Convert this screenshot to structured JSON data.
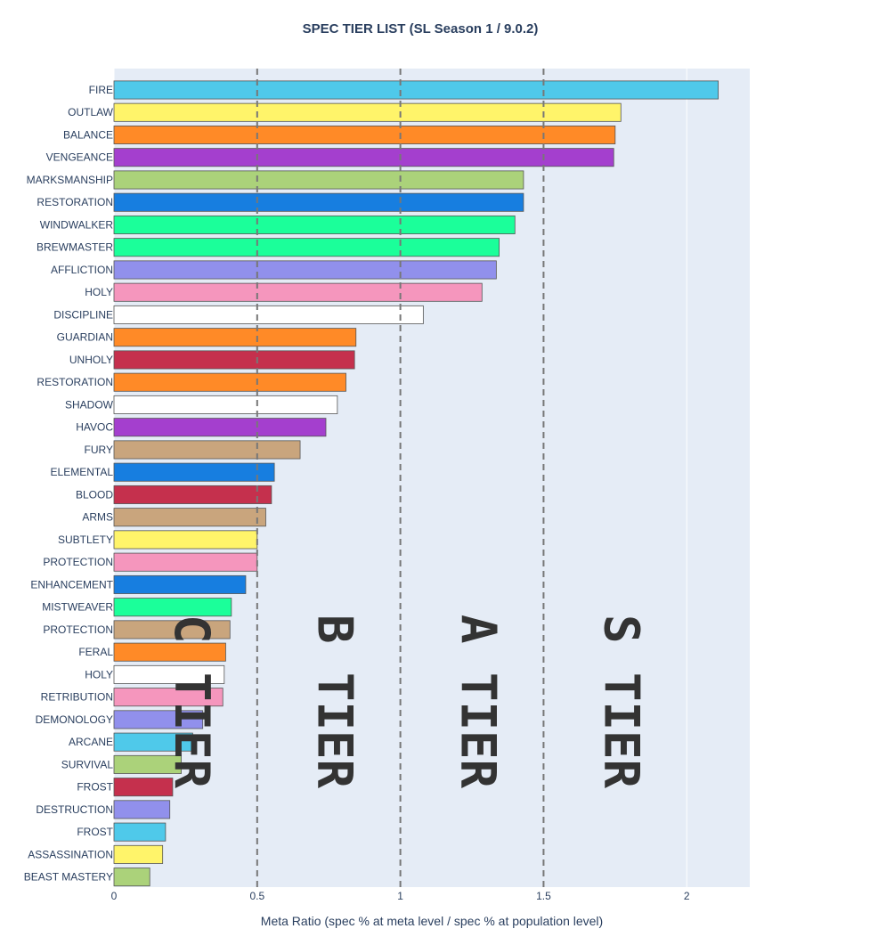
{
  "chart_data": {
    "type": "bar",
    "orientation": "horizontal",
    "title": "SPEC TIER LIST (SL Season 1 / 9.0.2)",
    "xlabel": "Meta Ratio (spec % at meta level / spec % at population level)",
    "ylabel": "",
    "xlim": [
      0,
      2.22
    ],
    "xticks": [
      0,
      0.5,
      1,
      1.5,
      2
    ],
    "xtick_labels": [
      "0",
      "0.5",
      "1",
      "1.5",
      "2"
    ],
    "grid": true,
    "plot_background": "#e5ecf6",
    "reference_lines": [
      {
        "x": 0.5,
        "style": "dashed",
        "color": "#777777"
      },
      {
        "x": 1.0,
        "style": "dashed",
        "color": "#777777"
      },
      {
        "x": 1.5,
        "style": "dashed",
        "color": "#777777"
      }
    ],
    "tier_labels": [
      {
        "text": "C TIER",
        "x": 0.27
      },
      {
        "text": "B TIER",
        "x": 0.77
      },
      {
        "text": "A TIER",
        "x": 1.27
      },
      {
        "text": "S TIER",
        "x": 1.77
      }
    ],
    "bars": [
      {
        "label": "FIRE",
        "value": 2.11,
        "color": "#4fc9ea"
      },
      {
        "label": "OUTLAW",
        "value": 1.77,
        "color": "#fff46a"
      },
      {
        "label": "BALANCE",
        "value": 1.75,
        "color": "#ff8a27"
      },
      {
        "label": "VENGEANCE",
        "value": 1.745,
        "color": "#a43fce"
      },
      {
        "label": "MARKSMANSHIP",
        "value": 1.43,
        "color": "#abd27a"
      },
      {
        "label": "RESTORATION",
        "value": 1.43,
        "color": "#177ee0"
      },
      {
        "label": "WINDWALKER",
        "value": 1.4,
        "color": "#1bff9a"
      },
      {
        "label": "BREWMASTER",
        "value": 1.345,
        "color": "#1bff9a"
      },
      {
        "label": "AFFLICTION",
        "value": 1.335,
        "color": "#9190ec"
      },
      {
        "label": "HOLY",
        "value": 1.285,
        "color": "#f596bd"
      },
      {
        "label": "DISCIPLINE",
        "value": 1.08,
        "color": "#ffffff"
      },
      {
        "label": "GUARDIAN",
        "value": 0.845,
        "color": "#ff8a27"
      },
      {
        "label": "UNHOLY",
        "value": 0.84,
        "color": "#c5304d"
      },
      {
        "label": "RESTORATION",
        "value": 0.81,
        "color": "#ff8a27"
      },
      {
        "label": "SHADOW",
        "value": 0.78,
        "color": "#ffffff"
      },
      {
        "label": "HAVOC",
        "value": 0.74,
        "color": "#a43fce"
      },
      {
        "label": "FURY",
        "value": 0.65,
        "color": "#c9a57d"
      },
      {
        "label": "ELEMENTAL",
        "value": 0.56,
        "color": "#177ee0"
      },
      {
        "label": "BLOOD",
        "value": 0.55,
        "color": "#c5304d"
      },
      {
        "label": "ARMS",
        "value": 0.53,
        "color": "#c9a57d"
      },
      {
        "label": "SUBTLETY",
        "value": 0.5,
        "color": "#fff46a"
      },
      {
        "label": "PROTECTION",
        "value": 0.5,
        "color": "#f596bd"
      },
      {
        "label": "ENHANCEMENT",
        "value": 0.46,
        "color": "#177ee0"
      },
      {
        "label": "MISTWEAVER",
        "value": 0.41,
        "color": "#1bff9a"
      },
      {
        "label": "PROTECTION",
        "value": 0.405,
        "color": "#c9a57d"
      },
      {
        "label": "FERAL",
        "value": 0.39,
        "color": "#ff8a27"
      },
      {
        "label": "HOLY",
        "value": 0.385,
        "color": "#ffffff"
      },
      {
        "label": "RETRIBUTION",
        "value": 0.38,
        "color": "#f596bd"
      },
      {
        "label": "DEMONOLOGY",
        "value": 0.31,
        "color": "#9190ec"
      },
      {
        "label": "ARCANE",
        "value": 0.275,
        "color": "#4fc9ea"
      },
      {
        "label": "SURVIVAL",
        "value": 0.235,
        "color": "#abd27a"
      },
      {
        "label": "FROST",
        "value": 0.205,
        "color": "#c5304d"
      },
      {
        "label": "DESTRUCTION",
        "value": 0.195,
        "color": "#9190ec"
      },
      {
        "label": "FROST",
        "value": 0.18,
        "color": "#4fc9ea"
      },
      {
        "label": "ASSASSINATION",
        "value": 0.17,
        "color": "#fff46a"
      },
      {
        "label": "BEAST MASTERY",
        "value": 0.125,
        "color": "#abd27a"
      }
    ]
  }
}
